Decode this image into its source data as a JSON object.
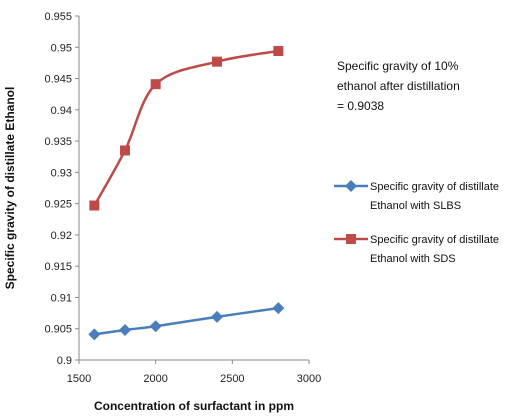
{
  "chart_data": {
    "type": "line",
    "xlabel": "Concentration of surfactant in ppm",
    "ylabel": "Specific gravity of distillate Ethanol",
    "xlim": [
      1500,
      3000
    ],
    "ylim": [
      0.9,
      0.955
    ],
    "xticks": [
      "1500",
      "2000",
      "2500",
      "3000"
    ],
    "yticks": [
      "0.9",
      "0.905",
      "0.91",
      "0.915",
      "0.92",
      "0.925",
      "0.93",
      "0.935",
      "0.94",
      "0.945",
      "0.95",
      "0.955"
    ],
    "grid": false,
    "legend_position": "right",
    "series": [
      {
        "legend_lines": [
          "Specific gravity of distillate",
          "Ethanol  with SLBS"
        ],
        "color": "#4a7ebb",
        "marker": "diamond",
        "x": [
          1600,
          1800,
          2000,
          2400,
          2800
        ],
        "y": [
          0.9041,
          0.9048,
          0.9054,
          0.9069,
          0.9083
        ]
      },
      {
        "legend_lines": [
          "Specific gravity of distillate",
          "Ethanol  with SDS"
        ],
        "color": "#be4b48",
        "marker": "square",
        "x": [
          1600,
          1800,
          2000,
          2400,
          2800
        ],
        "y": [
          0.9247,
          0.9335,
          0.9441,
          0.9477,
          0.9494
        ]
      }
    ],
    "annotation_lines": [
      "Specific gravity of 10%",
      "ethanol after distillation",
      "= 0.9038"
    ]
  }
}
